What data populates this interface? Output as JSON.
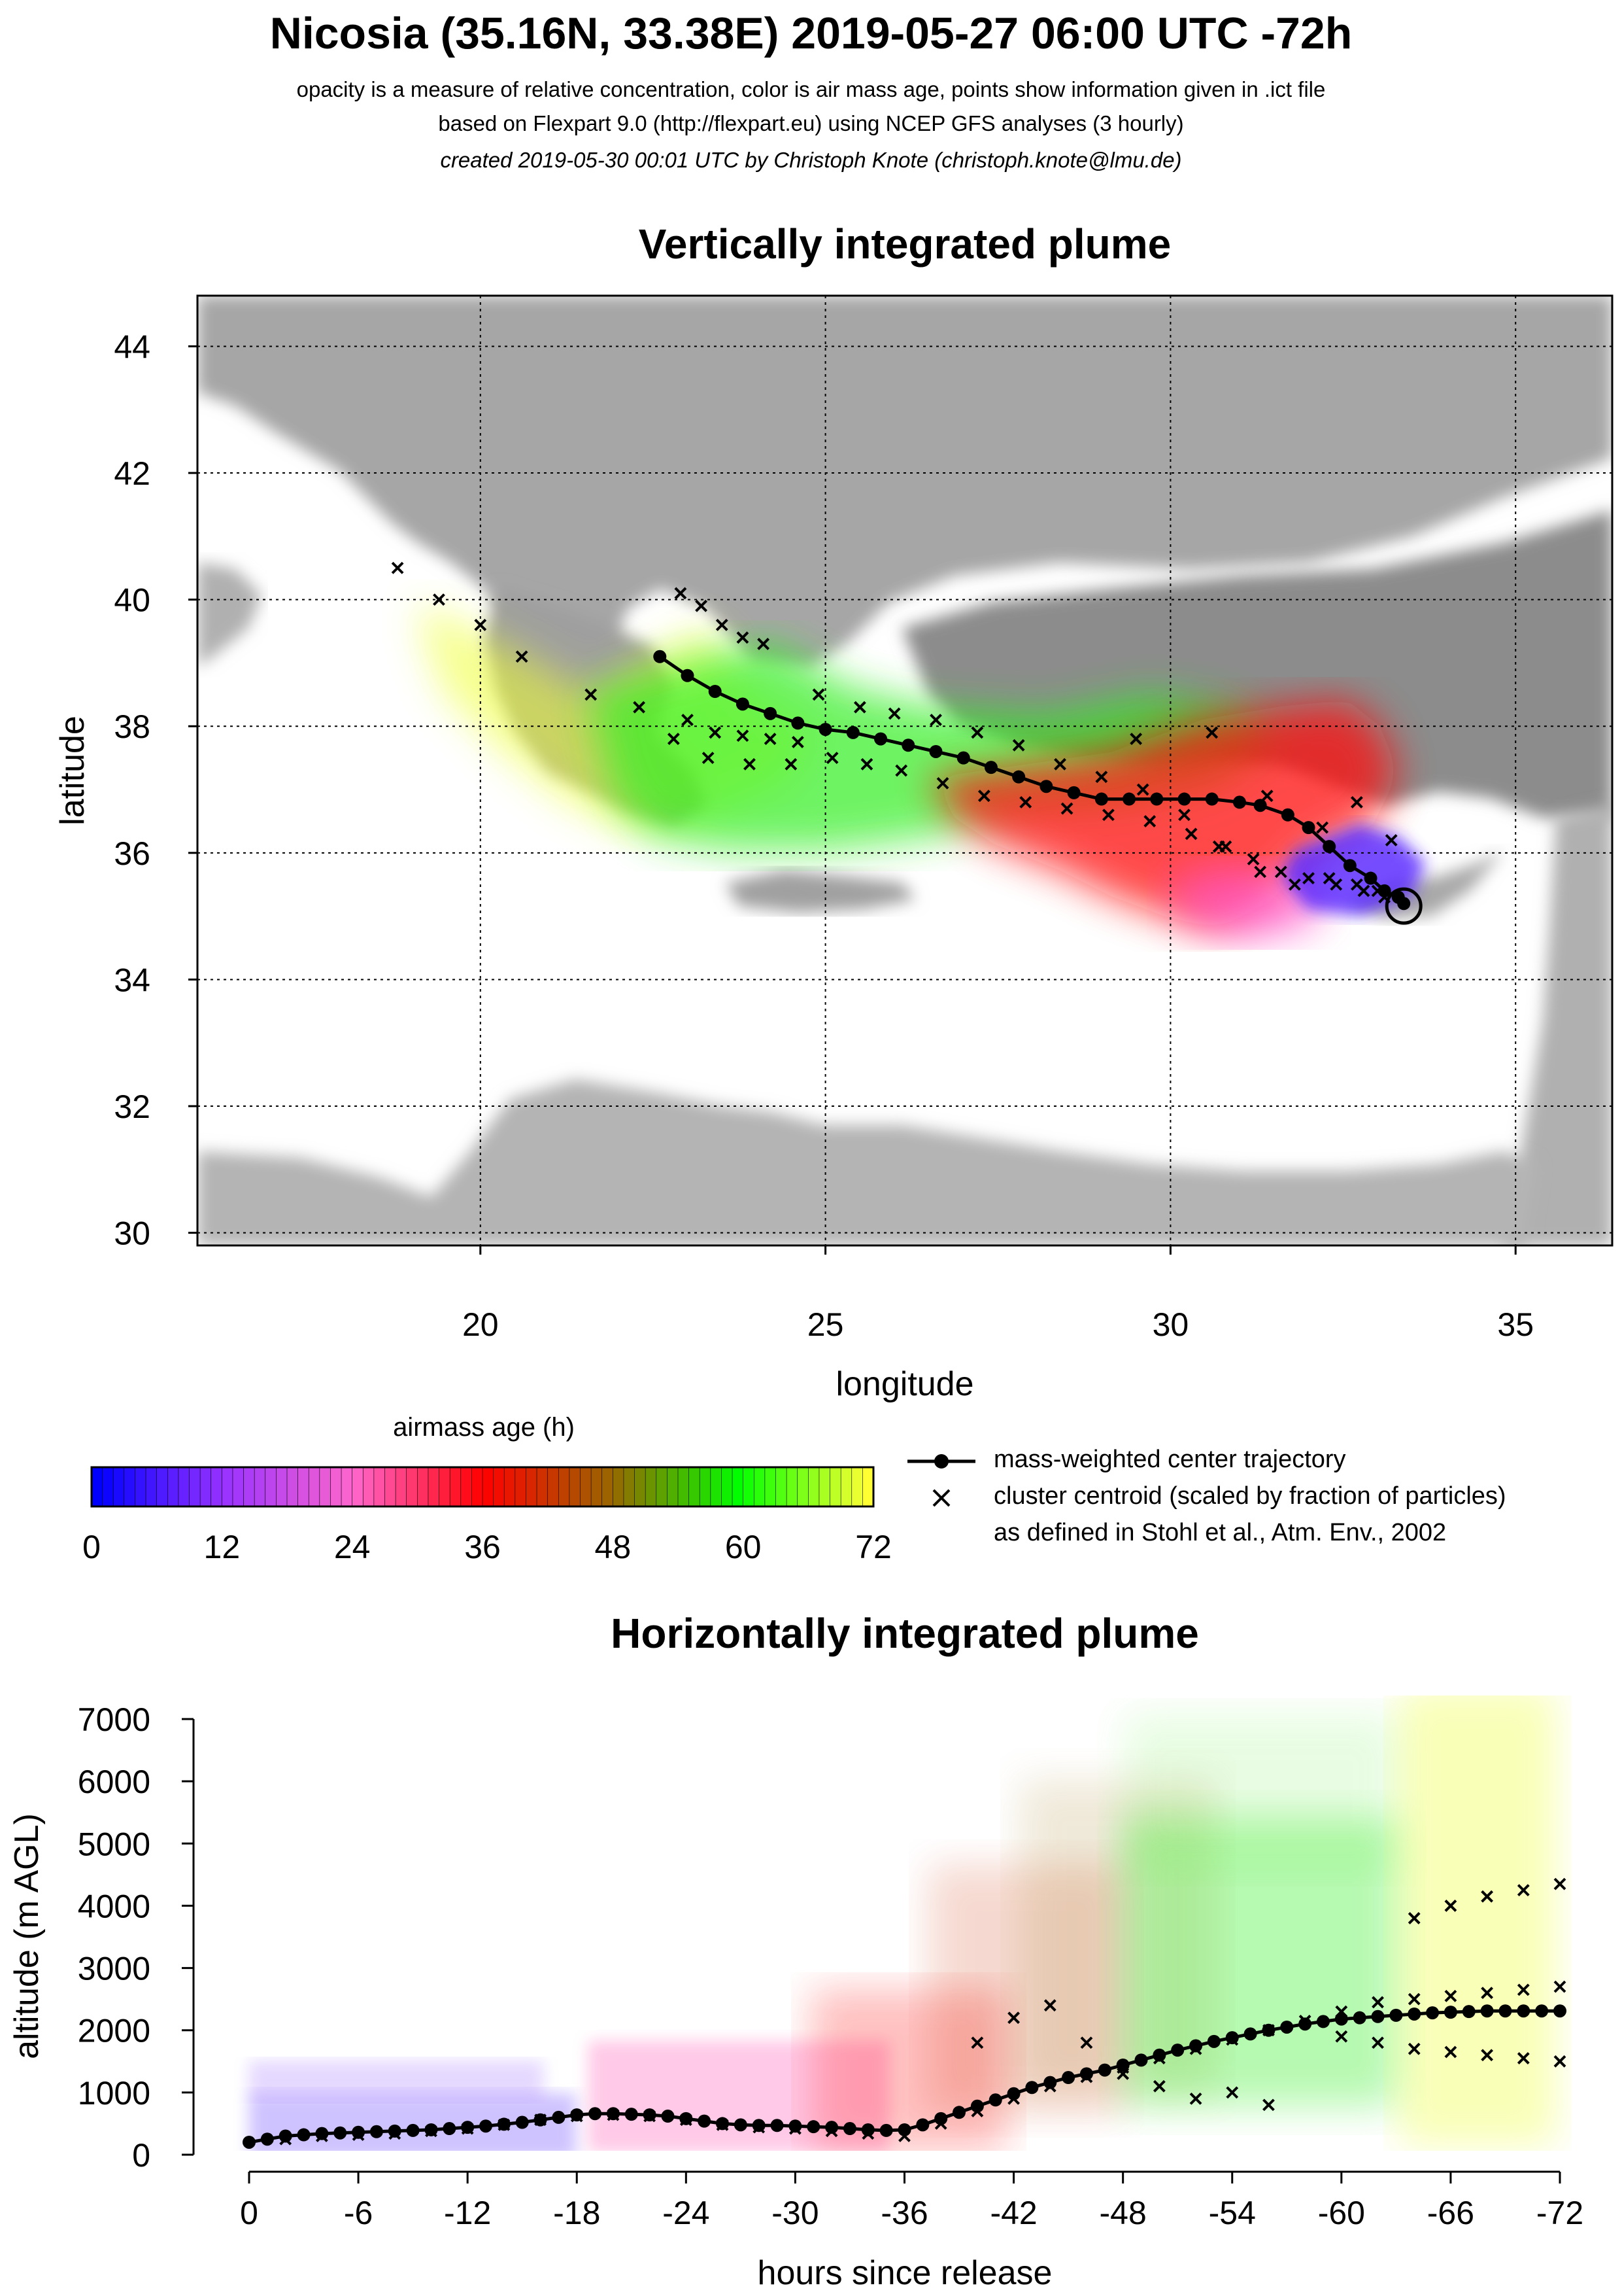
{
  "header": {
    "title": "Nicosia (35.16N, 33.38E) 2019-05-27 06:00 UTC -72h",
    "line1": "opacity is a measure of relative concentration, color is air mass age, points show information given in .ict file",
    "line2": "based on Flexpart 9.0 (http://flexpart.eu) using NCEP GFS analyses (3 hourly)",
    "line3": "created 2019-05-30 00:01 UTC by Christoph Knote (christoph.knote@lmu.de)"
  },
  "legend": {
    "colorbar_title": "airmass age (h)",
    "colorbar_ticks": [
      "0",
      "12",
      "24",
      "36",
      "48",
      "60",
      "72"
    ],
    "colorbar_colors": [
      "#0000ff",
      "#9933ff",
      "#ff66cc",
      "#ff0000",
      "#996600",
      "#00ff00",
      "#ffff33"
    ],
    "center_label": "mass-weighted center trajectory",
    "cluster_label": "cluster centroid (scaled by fraction of particles)",
    "cluster_label2": "as defined in Stohl et al., Atm. Env., 2002"
  },
  "chart_data": [
    {
      "type": "scatter",
      "title": "Vertically integrated plume",
      "xlabel": "longitude",
      "ylabel": "latitude",
      "xlim": [
        15.9,
        36.4
      ],
      "ylim": [
        29.8,
        44.8
      ],
      "xticks": [
        "20",
        "25",
        "30",
        "35"
      ],
      "yticks": [
        "30",
        "32",
        "34",
        "36",
        "38",
        "40",
        "42",
        "44"
      ],
      "grid": "dotted",
      "release_point": {
        "lon": 33.38,
        "lat": 35.16
      },
      "center_trajectory": {
        "lon": [
          33.38,
          33.3,
          33.1,
          32.9,
          32.6,
          32.3,
          32.0,
          31.7,
          31.3,
          31.0,
          30.6,
          30.2,
          29.8,
          29.4,
          29.0,
          28.6,
          28.2,
          27.8,
          27.4,
          27.0,
          26.6,
          26.2,
          25.8,
          25.4,
          25.0,
          24.6,
          24.2,
          23.8,
          23.4,
          23.0,
          22.6
        ],
        "lat": [
          35.2,
          35.3,
          35.4,
          35.6,
          35.8,
          36.1,
          36.4,
          36.6,
          36.75,
          36.8,
          36.85,
          36.85,
          36.85,
          36.85,
          36.85,
          36.95,
          37.05,
          37.2,
          37.35,
          37.5,
          37.6,
          37.7,
          37.8,
          37.9,
          37.95,
          38.05,
          38.2,
          38.35,
          38.55,
          38.8,
          39.1
        ]
      },
      "cluster_centroids": {
        "lon": [
          22.9,
          23.2,
          23.5,
          23.8,
          24.1,
          23.0,
          23.4,
          23.8,
          24.2,
          24.6,
          22.8,
          23.3,
          23.9,
          24.5,
          25.1,
          25.6,
          26.1,
          26.7,
          27.3,
          27.9,
          28.5,
          29.1,
          29.7,
          30.3,
          30.8,
          31.2,
          31.6,
          32.0,
          32.4,
          32.8,
          33.1,
          21.6,
          22.3,
          24.9,
          25.5,
          26.0,
          26.6,
          27.2,
          27.8,
          28.4,
          29.0,
          29.6,
          30.2,
          30.7,
          31.3,
          31.8,
          32.3,
          32.7,
          33.0,
          18.8,
          19.4,
          20.0,
          20.6,
          29.5,
          30.6,
          31.4,
          32.2,
          32.7,
          33.2
        ],
        "lat": [
          40.1,
          39.9,
          39.6,
          39.4,
          39.3,
          38.1,
          37.9,
          37.85,
          37.8,
          37.75,
          37.8,
          37.5,
          37.4,
          37.4,
          37.5,
          37.4,
          37.3,
          37.1,
          36.9,
          36.8,
          36.7,
          36.6,
          36.5,
          36.3,
          36.1,
          35.9,
          35.7,
          35.6,
          35.5,
          35.4,
          35.3,
          38.5,
          38.3,
          38.5,
          38.3,
          38.2,
          38.1,
          37.9,
          37.7,
          37.4,
          37.2,
          37.0,
          36.6,
          36.1,
          35.7,
          35.5,
          35.6,
          35.5,
          35.4,
          40.5,
          40.0,
          39.6,
          39.1,
          37.8,
          37.9,
          36.9,
          36.4,
          36.8,
          36.2
        ]
      }
    },
    {
      "type": "scatter",
      "title": "Horizontally integrated plume",
      "xlabel": "hours since release",
      "ylabel": "altitude (m AGL)",
      "xlim": [
        0,
        -72
      ],
      "ylim": [
        0,
        7500
      ],
      "xticks": [
        "0",
        "-6",
        "-12",
        "-18",
        "-24",
        "-30",
        "-36",
        "-42",
        "-48",
        "-54",
        "-60",
        "-66",
        "-72"
      ],
      "yticks": [
        "0",
        "1000",
        "2000",
        "3000",
        "4000",
        "5000",
        "6000",
        "7000"
      ],
      "center_trajectory": {
        "hours": [
          0,
          -1,
          -2,
          -3,
          -4,
          -5,
          -6,
          -7,
          -8,
          -9,
          -10,
          -11,
          -12,
          -13,
          -14,
          -15,
          -16,
          -17,
          -18,
          -19,
          -20,
          -21,
          -22,
          -23,
          -24,
          -25,
          -26,
          -27,
          -28,
          -29,
          -30,
          -31,
          -32,
          -33,
          -34,
          -35,
          -36,
          -37,
          -38,
          -39,
          -40,
          -41,
          -42,
          -43,
          -44,
          -45,
          -46,
          -47,
          -48,
          -49,
          -50,
          -51,
          -52,
          -53,
          -54,
          -55,
          -56,
          -57,
          -58,
          -59,
          -60,
          -61,
          -62,
          -63,
          -64,
          -65,
          -66,
          -67,
          -68,
          -69,
          -70,
          -71,
          -72
        ],
        "altitude": [
          200,
          250,
          300,
          320,
          340,
          350,
          360,
          370,
          380,
          390,
          400,
          420,
          440,
          460,
          490,
          520,
          560,
          600,
          640,
          660,
          660,
          650,
          640,
          620,
          580,
          540,
          500,
          480,
          470,
          470,
          460,
          450,
          440,
          420,
          400,
          390,
          400,
          480,
          580,
          680,
          780,
          880,
          980,
          1080,
          1160,
          1240,
          1300,
          1360,
          1440,
          1520,
          1600,
          1680,
          1750,
          1820,
          1880,
          1940,
          2000,
          2050,
          2100,
          2140,
          2180,
          2200,
          2220,
          2240,
          2260,
          2280,
          2290,
          2300,
          2310,
          2310,
          2310,
          2310,
          2310
        ]
      },
      "cluster_centroids": {
        "hours": [
          -2,
          -4,
          -6,
          -8,
          -10,
          -12,
          -14,
          -16,
          -18,
          -20,
          -22,
          -24,
          -26,
          -28,
          -30,
          -32,
          -34,
          -36,
          -38,
          -40,
          -42,
          -44,
          -46,
          -48,
          -50,
          -52,
          -54,
          -56,
          -58,
          -60,
          -62,
          -64,
          -66,
          -68,
          -70,
          -72,
          -64,
          -66,
          -68,
          -70,
          -72,
          -60,
          -62,
          -64,
          -66,
          -68,
          -70,
          -72,
          -40,
          -42,
          -44,
          -46,
          -48,
          -50,
          -52,
          -54,
          -56
        ],
        "altitude": [
          250,
          300,
          320,
          340,
          380,
          420,
          480,
          560,
          620,
          640,
          620,
          560,
          480,
          440,
          420,
          380,
          340,
          300,
          500,
          700,
          900,
          1100,
          1250,
          1400,
          1550,
          1700,
          1850,
          2000,
          2150,
          2300,
          2450,
          2500,
          2550,
          2600,
          2650,
          2700,
          3800,
          4000,
          4150,
          4250,
          4350,
          1900,
          1800,
          1700,
          1650,
          1600,
          1550,
          1500,
          1800,
          2200,
          2400,
          1800,
          1300,
          1100,
          900,
          1000,
          800
        ]
      }
    }
  ]
}
